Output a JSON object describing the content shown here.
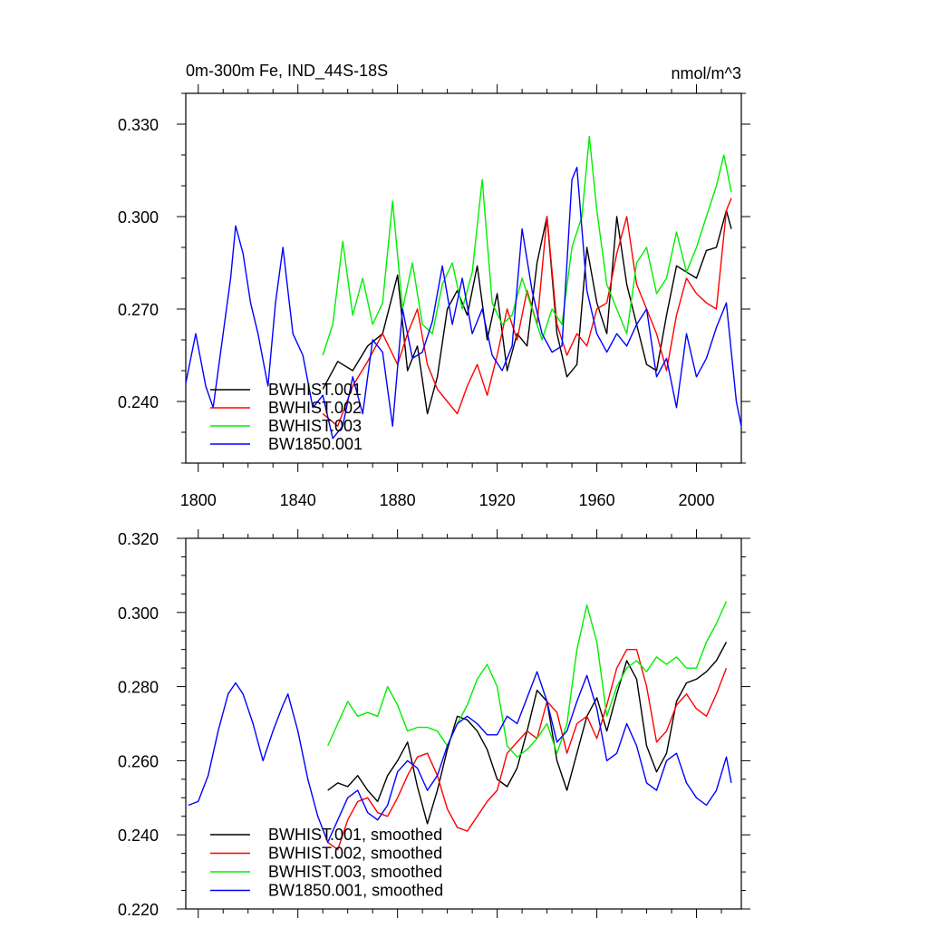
{
  "chart_data": [
    {
      "type": "line",
      "title": "0m-300m Fe, IND_44S-18S",
      "units": "nmol/m^3",
      "xlabel": "",
      "ylabel": "",
      "xlim": [
        1795,
        2018
      ],
      "ylim": [
        0.22,
        0.34
      ],
      "xticks": [
        1800,
        1840,
        1880,
        1920,
        1960,
        2000
      ],
      "yticks": [
        0.24,
        0.27,
        0.3,
        0.33
      ],
      "ytick_labels": [
        "0.240",
        "0.270",
        "0.300",
        "0.330"
      ],
      "legend_location": "lower-left",
      "series": [
        {
          "name": "BWHIST.001",
          "color": "#000000",
          "x": [
            1850,
            1856,
            1862,
            1868,
            1874,
            1880,
            1884,
            1888,
            1892,
            1896,
            1900,
            1904,
            1908,
            1912,
            1916,
            1920,
            1924,
            1928,
            1932,
            1936,
            1940,
            1944,
            1948,
            1952,
            1956,
            1960,
            1964,
            1968,
            1972,
            1976,
            1980,
            1984,
            1988,
            1992,
            1996,
            2000,
            2004,
            2008,
            2012,
            2014
          ],
          "y": [
            0.244,
            0.253,
            0.25,
            0.258,
            0.262,
            0.281,
            0.25,
            0.258,
            0.236,
            0.248,
            0.27,
            0.276,
            0.268,
            0.284,
            0.26,
            0.275,
            0.25,
            0.262,
            0.258,
            0.285,
            0.3,
            0.262,
            0.248,
            0.252,
            0.29,
            0.272,
            0.262,
            0.3,
            0.278,
            0.265,
            0.252,
            0.25,
            0.268,
            0.284,
            0.282,
            0.28,
            0.289,
            0.29,
            0.302,
            0.296
          ]
        },
        {
          "name": "BWHIST.002",
          "color": "#ff0000",
          "x": [
            1850,
            1856,
            1862,
            1868,
            1874,
            1880,
            1884,
            1888,
            1892,
            1896,
            1900,
            1904,
            1908,
            1912,
            1916,
            1920,
            1924,
            1928,
            1932,
            1936,
            1940,
            1944,
            1948,
            1952,
            1956,
            1960,
            1964,
            1968,
            1972,
            1976,
            1980,
            1984,
            1988,
            1992,
            1996,
            2000,
            2004,
            2008,
            2012,
            2014
          ],
          "y": [
            0.236,
            0.232,
            0.245,
            0.253,
            0.262,
            0.252,
            0.262,
            0.27,
            0.252,
            0.244,
            0.24,
            0.236,
            0.245,
            0.252,
            0.242,
            0.255,
            0.27,
            0.26,
            0.276,
            0.265,
            0.3,
            0.265,
            0.255,
            0.262,
            0.258,
            0.27,
            0.272,
            0.288,
            0.3,
            0.278,
            0.27,
            0.262,
            0.25,
            0.268,
            0.28,
            0.275,
            0.272,
            0.27,
            0.302,
            0.306
          ]
        },
        {
          "name": "BWHIST.003",
          "color": "#00ee00",
          "x": [
            1850,
            1854,
            1858,
            1862,
            1866,
            1870,
            1874,
            1878,
            1882,
            1886,
            1890,
            1894,
            1898,
            1902,
            1906,
            1910,
            1914,
            1918,
            1922,
            1926,
            1930,
            1934,
            1938,
            1942,
            1946,
            1950,
            1954,
            1957,
            1960,
            1964,
            1968,
            1972,
            1976,
            1980,
            1984,
            1988,
            1992,
            1996,
            2000,
            2004,
            2008,
            2011,
            2014
          ],
          "y": [
            0.255,
            0.265,
            0.292,
            0.268,
            0.28,
            0.265,
            0.272,
            0.305,
            0.27,
            0.285,
            0.265,
            0.262,
            0.278,
            0.285,
            0.27,
            0.282,
            0.312,
            0.272,
            0.265,
            0.268,
            0.28,
            0.27,
            0.26,
            0.27,
            0.265,
            0.29,
            0.3,
            0.326,
            0.302,
            0.278,
            0.27,
            0.262,
            0.285,
            0.29,
            0.275,
            0.28,
            0.295,
            0.282,
            0.29,
            0.3,
            0.31,
            0.32,
            0.308
          ]
        },
        {
          "name": "BW1850.001",
          "color": "#0000ff",
          "x": [
            1795,
            1799,
            1803,
            1806,
            1810,
            1813,
            1815,
            1818,
            1821,
            1824,
            1828,
            1831,
            1834,
            1838,
            1842,
            1846,
            1850,
            1854,
            1858,
            1862,
            1866,
            1870,
            1874,
            1878,
            1882,
            1886,
            1890,
            1894,
            1898,
            1902,
            1906,
            1910,
            1914,
            1918,
            1922,
            1926,
            1930,
            1934,
            1938,
            1942,
            1946,
            1950,
            1952,
            1956,
            1960,
            1964,
            1968,
            1972,
            1976,
            1980,
            1984,
            1988,
            1992,
            1996,
            2000,
            2004,
            2008,
            2012,
            2016,
            2018
          ],
          "y": [
            0.246,
            0.262,
            0.245,
            0.238,
            0.262,
            0.28,
            0.297,
            0.288,
            0.272,
            0.262,
            0.245,
            0.272,
            0.29,
            0.262,
            0.255,
            0.238,
            0.242,
            0.228,
            0.232,
            0.248,
            0.236,
            0.26,
            0.256,
            0.232,
            0.27,
            0.254,
            0.256,
            0.266,
            0.284,
            0.265,
            0.28,
            0.262,
            0.27,
            0.255,
            0.25,
            0.258,
            0.296,
            0.276,
            0.262,
            0.256,
            0.258,
            0.312,
            0.316,
            0.276,
            0.262,
            0.256,
            0.262,
            0.258,
            0.265,
            0.27,
            0.248,
            0.254,
            0.238,
            0.262,
            0.248,
            0.254,
            0.264,
            0.272,
            0.24,
            0.232
          ]
        }
      ],
      "legend": [
        "BWHIST.001",
        "BWHIST.002",
        "BWHIST.003",
        "BW1850.001"
      ]
    },
    {
      "type": "line",
      "title": "",
      "xlabel": "",
      "ylabel": "",
      "xlim": [
        1795,
        2018
      ],
      "ylim": [
        0.22,
        0.32
      ],
      "xticks": [
        1800,
        1840,
        1880,
        1920,
        1960,
        2000
      ],
      "yticks": [
        0.22,
        0.24,
        0.26,
        0.28,
        0.3,
        0.32
      ],
      "ytick_labels": [
        "0.220",
        "0.240",
        "0.260",
        "0.280",
        "0.300",
        "0.320"
      ],
      "legend_location": "lower-left",
      "series": [
        {
          "name": "BWHIST.001, smoothed",
          "color": "#000000",
          "x": [
            1852,
            1856,
            1860,
            1864,
            1868,
            1872,
            1876,
            1880,
            1884,
            1888,
            1892,
            1896,
            1900,
            1904,
            1908,
            1912,
            1916,
            1920,
            1924,
            1928,
            1932,
            1936,
            1940,
            1944,
            1948,
            1952,
            1956,
            1960,
            1964,
            1968,
            1972,
            1976,
            1980,
            1984,
            1988,
            1992,
            1996,
            2000,
            2004,
            2008,
            2012
          ],
          "y": [
            0.252,
            0.254,
            0.253,
            0.256,
            0.252,
            0.249,
            0.256,
            0.26,
            0.265,
            0.253,
            0.243,
            0.252,
            0.263,
            0.272,
            0.271,
            0.268,
            0.263,
            0.255,
            0.253,
            0.258,
            0.268,
            0.279,
            0.276,
            0.26,
            0.252,
            0.262,
            0.272,
            0.277,
            0.268,
            0.278,
            0.287,
            0.282,
            0.264,
            0.257,
            0.262,
            0.276,
            0.281,
            0.282,
            0.284,
            0.287,
            0.292
          ]
        },
        {
          "name": "BWHIST.002, smoothed",
          "color": "#ff0000",
          "x": [
            1852,
            1856,
            1860,
            1864,
            1868,
            1872,
            1876,
            1880,
            1884,
            1888,
            1892,
            1896,
            1900,
            1904,
            1908,
            1912,
            1916,
            1920,
            1924,
            1928,
            1932,
            1936,
            1940,
            1944,
            1948,
            1952,
            1956,
            1960,
            1964,
            1968,
            1972,
            1976,
            1980,
            1984,
            1988,
            1992,
            1996,
            2000,
            2004,
            2008,
            2012
          ],
          "y": [
            0.238,
            0.236,
            0.244,
            0.249,
            0.25,
            0.246,
            0.245,
            0.25,
            0.256,
            0.261,
            0.262,
            0.256,
            0.247,
            0.242,
            0.241,
            0.245,
            0.249,
            0.252,
            0.262,
            0.265,
            0.268,
            0.266,
            0.276,
            0.273,
            0.262,
            0.27,
            0.272,
            0.266,
            0.275,
            0.285,
            0.29,
            0.29,
            0.28,
            0.265,
            0.268,
            0.275,
            0.278,
            0.274,
            0.272,
            0.278,
            0.285
          ]
        },
        {
          "name": "BWHIST.003, smoothed",
          "color": "#00ee00",
          "x": [
            1852,
            1856,
            1860,
            1864,
            1868,
            1872,
            1876,
            1880,
            1884,
            1888,
            1892,
            1896,
            1900,
            1904,
            1908,
            1912,
            1916,
            1920,
            1924,
            1928,
            1932,
            1936,
            1940,
            1944,
            1948,
            1952,
            1956,
            1960,
            1964,
            1968,
            1972,
            1976,
            1980,
            1984,
            1988,
            1992,
            1996,
            2000,
            2004,
            2008,
            2012
          ],
          "y": [
            0.264,
            0.27,
            0.276,
            0.272,
            0.273,
            0.272,
            0.28,
            0.275,
            0.268,
            0.269,
            0.269,
            0.268,
            0.264,
            0.27,
            0.275,
            0.282,
            0.286,
            0.28,
            0.264,
            0.261,
            0.263,
            0.266,
            0.27,
            0.262,
            0.27,
            0.29,
            0.302,
            0.292,
            0.272,
            0.28,
            0.285,
            0.287,
            0.284,
            0.288,
            0.286,
            0.288,
            0.285,
            0.285,
            0.292,
            0.297,
            0.303
          ]
        },
        {
          "name": "BW1850.001, smoothed",
          "color": "#0000ff",
          "x": [
            1796,
            1800,
            1804,
            1808,
            1812,
            1815,
            1818,
            1822,
            1826,
            1830,
            1834,
            1836,
            1840,
            1844,
            1848,
            1852,
            1856,
            1860,
            1864,
            1868,
            1872,
            1876,
            1880,
            1884,
            1888,
            1892,
            1896,
            1900,
            1904,
            1908,
            1912,
            1916,
            1920,
            1924,
            1928,
            1932,
            1936,
            1940,
            1944,
            1948,
            1952,
            1956,
            1960,
            1964,
            1968,
            1972,
            1976,
            1980,
            1984,
            1988,
            1992,
            1996,
            2000,
            2004,
            2008,
            2012,
            2014
          ],
          "y": [
            0.248,
            0.249,
            0.256,
            0.268,
            0.278,
            0.281,
            0.278,
            0.27,
            0.26,
            0.268,
            0.275,
            0.278,
            0.268,
            0.255,
            0.245,
            0.238,
            0.244,
            0.25,
            0.252,
            0.246,
            0.244,
            0.248,
            0.257,
            0.26,
            0.258,
            0.252,
            0.256,
            0.264,
            0.27,
            0.272,
            0.27,
            0.267,
            0.267,
            0.272,
            0.27,
            0.277,
            0.284,
            0.276,
            0.265,
            0.268,
            0.276,
            0.283,
            0.274,
            0.26,
            0.262,
            0.27,
            0.264,
            0.254,
            0.252,
            0.26,
            0.262,
            0.254,
            0.25,
            0.248,
            0.252,
            0.261,
            0.254
          ]
        }
      ],
      "legend": [
        "BWHIST.001, smoothed",
        "BWHIST.002, smoothed",
        "BWHIST.003, smoothed",
        "BW1850.001, smoothed"
      ]
    }
  ]
}
